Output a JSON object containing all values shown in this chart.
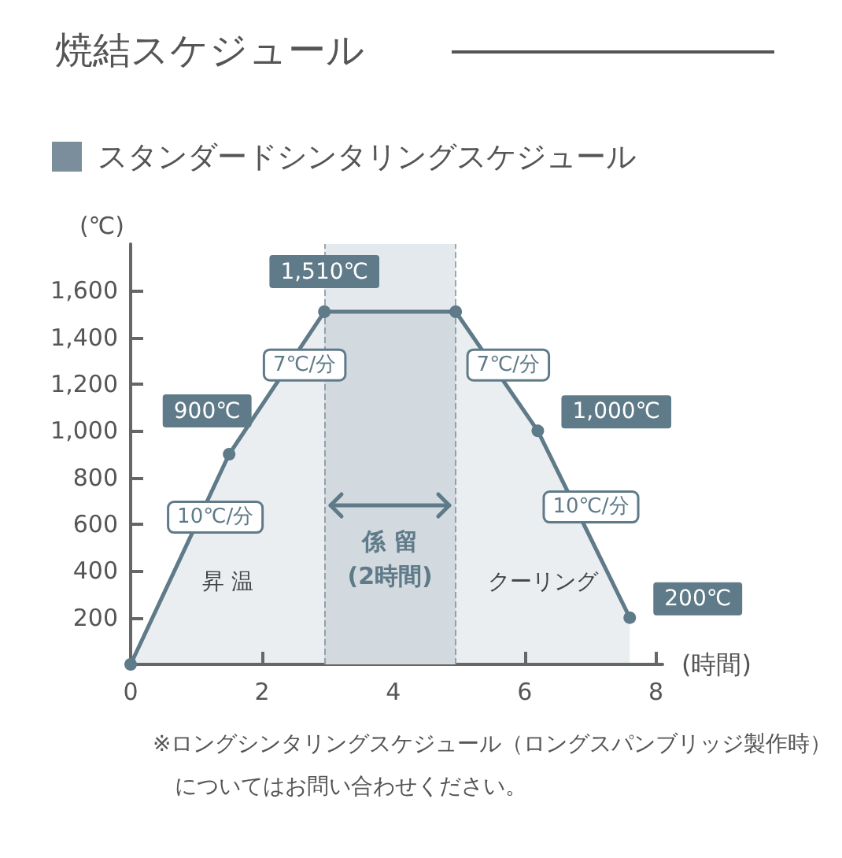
{
  "chart_data": {
    "type": "area",
    "title": "焼結スケジュール",
    "subtitle": "スタンダードシンタリングスケジュール",
    "xlabel": "(時間)",
    "ylabel": "(℃)",
    "x": [
      0,
      1.5,
      2.95,
      4.95,
      6.2,
      7.6
    ],
    "series": [
      {
        "color": "#5f7a88",
        "values": [
          0,
          900,
          1510,
          1510,
          1000,
          200
        ],
        "value_labels": [
          null,
          "900℃",
          "1,510℃",
          null,
          "1,000℃",
          "200℃"
        ]
      }
    ],
    "xlim": [
      0,
      8.1
    ],
    "xticks": [
      0,
      2,
      4,
      6,
      8
    ],
    "ylim": [
      0,
      1800
    ],
    "yticks": [
      200,
      400,
      600,
      800,
      {
        "value": 1000,
        "label": "1,000"
      },
      {
        "value": 1200,
        "label": "1,200"
      },
      {
        "value": 1400,
        "label": "1,400"
      },
      {
        "value": 1600,
        "label": "1,600"
      }
    ],
    "grid": false,
    "marker": "circle",
    "line_style": "solid",
    "ref_lines": [
      {
        "axis": "x",
        "value": 2.95,
        "line_style": "dashed",
        "color": "#9aa7b0"
      },
      {
        "axis": "x",
        "value": 4.95,
        "line_style": "dashed",
        "color": "#9aa7b0"
      }
    ],
    "bands": [
      {
        "axis": "x",
        "from": 2.95,
        "to": 4.95,
        "label": "係 留\n(2時間)",
        "color": "#e4e9ed"
      }
    ],
    "annotations": [
      {
        "text": "10℃/分",
        "x": 1.05,
        "y": 630
      },
      {
        "text": "7℃/分",
        "x": 2.41,
        "y": 1282
      },
      {
        "text": "7℃/分",
        "x": 5.51,
        "y": 1282
      },
      {
        "text": "10℃/分",
        "x": 6.77,
        "y": 674
      },
      "昇 温",
      "クーリング",
      "※ロングシンタリングスケジュール（ロングスパンブリッジ製作時）についてはお問い合わせください。"
    ]
  }
}
